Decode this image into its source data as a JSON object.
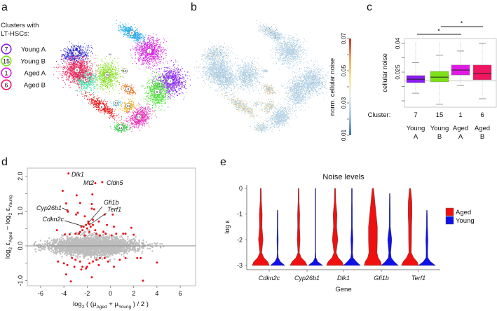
{
  "panel_labels": {
    "a": "a",
    "b": "b",
    "c": "c",
    "d": "d",
    "e": "e"
  },
  "chart_data": [
    {
      "panel": "a",
      "type": "scatter",
      "legend_title_line1": "Clusters with",
      "legend_title_line2": "LT-HSCs:",
      "legend": [
        {
          "cluster": "7",
          "label": "Young A",
          "color": "#8a1cf0"
        },
        {
          "cluster": "15",
          "label": "Young B",
          "color": "#7ee01a"
        },
        {
          "cluster": "1",
          "label": "Aged A",
          "color": "#e01ae6"
        },
        {
          "cluster": "6",
          "label": "Aged B",
          "color": "#f01560"
        }
      ],
      "clusters": [
        {
          "id": "1",
          "color": "#d51fe0"
        },
        {
          "id": "2",
          "color": "#1ea8e8"
        },
        {
          "id": "3",
          "color": "#2ee8a8"
        },
        {
          "id": "4",
          "color": "#2020d8"
        },
        {
          "id": "5",
          "color": "#e81818"
        },
        {
          "id": "6",
          "color": "#f0205a"
        },
        {
          "id": "7",
          "color": "#8a28f0"
        },
        {
          "id": "8",
          "color": "#f07010"
        },
        {
          "id": "9",
          "color": "#48e030"
        },
        {
          "id": "10",
          "color": "#e828b8"
        },
        {
          "id": "11",
          "color": "#f0b020"
        },
        {
          "id": "12",
          "color": "#20d0f0"
        },
        {
          "id": "13",
          "color": "#3060d0"
        },
        {
          "id": "14",
          "color": "#30d040"
        },
        {
          "id": "15",
          "color": "#88e020"
        }
      ],
      "stray_label": "M"
    },
    {
      "panel": "b",
      "type": "scatter",
      "colorbar_label": "norm. cellular noise",
      "colorbar_ticks": [
        "0.01",
        "0.03",
        "0.05",
        "0.07"
      ],
      "colorbar_range": [
        0.01,
        0.07
      ],
      "colormap": [
        "#3a6fb0",
        "#a9cbe3",
        "#eef2f0",
        "#f5e79a",
        "#f2a25a",
        "#c8302a"
      ]
    },
    {
      "panel": "c",
      "type": "box",
      "ylabel": "cellular noise",
      "yticks": [
        "0.04",
        "0.025"
      ],
      "ylim": [
        0.005,
        0.043
      ],
      "reference_line": 0.0205,
      "row_label": "Cluster:",
      "groups": [
        {
          "cluster": "7",
          "name1": "Young",
          "name2": "A",
          "color": "#8a1cf0",
          "q1": 0.0195,
          "median": 0.0213,
          "q3": 0.0232,
          "whisker_low": 0.014,
          "whisker_high": 0.03
        },
        {
          "cluster": "15",
          "name1": "Young",
          "name2": "B",
          "color": "#7ee01a",
          "q1": 0.0199,
          "median": 0.0224,
          "q3": 0.0254,
          "whisker_low": 0.0082,
          "whisker_high": 0.0338
        },
        {
          "cluster": "1",
          "name1": "Aged",
          "name2": "A",
          "color": "#e01ae6",
          "q1": 0.0235,
          "median": 0.0261,
          "q3": 0.0287,
          "whisker_low": 0.018,
          "whisker_high": 0.036
        },
        {
          "cluster": "6",
          "name1": "Aged",
          "name2": "B",
          "color": "#f01560",
          "q1": 0.021,
          "median": 0.0243,
          "q3": 0.0287,
          "whisker_low": 0.0111,
          "whisker_high": 0.04
        }
      ],
      "significance": [
        {
          "from": "7",
          "to": "1",
          "label": "*"
        },
        {
          "from": "15",
          "to": "6",
          "label": "*"
        }
      ]
    },
    {
      "panel": "d",
      "type": "scatter",
      "xlabel_parts": [
        "log",
        "2",
        " ( (μ",
        "Aged",
        " + μ",
        "Young",
        " ) / 2 )"
      ],
      "ylabel_parts": [
        "log",
        "2",
        " ε",
        "Aged",
        " − log",
        "2",
        " ε",
        "Young"
      ],
      "xlim": [
        -7.2,
        7.3
      ],
      "ylim": [
        -1.15,
        2.25
      ],
      "xticks": [
        "-6",
        "-4",
        "-2",
        "0",
        "2",
        "4",
        "6"
      ],
      "yticks": [
        "-1.0",
        "0.0",
        "1.0",
        "2.0"
      ],
      "background_color": "#bdbdbd",
      "significant_color": "#e8141c",
      "significant_points": [
        [
          -4.1,
          1.58
        ],
        [
          -2.9,
          1.45
        ],
        [
          -1.55,
          1.48
        ],
        [
          -3.8,
          1.22
        ],
        [
          -2.6,
          1.23
        ],
        [
          -1.6,
          1.2
        ],
        [
          -3.65,
          0.98
        ],
        [
          -1.6,
          1.07
        ],
        [
          -1.4,
          1.05
        ],
        [
          -2.95,
          0.9
        ],
        [
          -2.8,
          0.95
        ],
        [
          -2.2,
          0.85
        ],
        [
          -1.9,
          0.7
        ],
        [
          -1.5,
          0.75
        ],
        [
          -0.5,
          0.9
        ],
        [
          0.2,
          0.9
        ],
        [
          -1.0,
          0.7
        ],
        [
          -0.3,
          0.6
        ],
        [
          0.3,
          0.55
        ],
        [
          1.8,
          0.52
        ],
        [
          -4.6,
          0.45
        ],
        [
          -3.9,
          0.33
        ],
        [
          -3.5,
          0.33
        ],
        [
          -3.0,
          0.35
        ],
        [
          -2.6,
          0.4
        ],
        [
          -2.4,
          0.45
        ],
        [
          -2.2,
          0.3
        ],
        [
          -2.0,
          0.5
        ],
        [
          -1.7,
          0.55
        ],
        [
          -1.3,
          0.45
        ],
        [
          -1.2,
          0.35
        ],
        [
          -0.9,
          0.3
        ],
        [
          -0.6,
          0.4
        ],
        [
          -0.4,
          0.35
        ],
        [
          0.1,
          0.3
        ],
        [
          0.5,
          0.35
        ],
        [
          1.3,
          0.35
        ],
        [
          1.1,
          0.35
        ],
        [
          2.0,
          0.32
        ],
        [
          -2.7,
          0.35
        ],
        [
          -1.5,
          0.6
        ],
        [
          -2.1,
          0.6
        ],
        [
          -1.8,
          0.4
        ],
        [
          -2.5,
          0.55
        ],
        [
          -4.5,
          -0.45
        ],
        [
          -4.0,
          -0.5
        ],
        [
          -3.7,
          -0.55
        ],
        [
          -3.3,
          -0.35
        ],
        [
          -3.0,
          -0.4
        ],
        [
          -2.6,
          -0.45
        ],
        [
          -2.4,
          -0.6
        ],
        [
          -2.1,
          -0.65
        ],
        [
          -1.8,
          -0.5
        ],
        [
          -1.5,
          -0.45
        ],
        [
          -1.2,
          -0.4
        ],
        [
          -0.9,
          -0.35
        ],
        [
          -0.5,
          -0.35
        ],
        [
          -0.2,
          -0.45
        ],
        [
          0.3,
          -0.6
        ],
        [
          0.8,
          -0.4
        ],
        [
          1.3,
          -0.35
        ],
        [
          2.3,
          -0.35
        ],
        [
          2.6,
          -0.35
        ],
        [
          -3.8,
          -0.82
        ],
        [
          -2.5,
          -0.68
        ],
        [
          -1.6,
          -0.9
        ],
        [
          -3.4,
          -1.02
        ],
        [
          2.8,
          -1.0
        ],
        [
          4.0,
          -0.48
        ],
        [
          -3.1,
          -0.6
        ],
        [
          -2.0,
          -0.6
        ],
        [
          -1.0,
          -0.55
        ]
      ],
      "labeled_genes": [
        {
          "gene": "Dlk1",
          "x": -3.6,
          "y": 2.08
        },
        {
          "gene": "Mt2",
          "x": -1.3,
          "y": 1.8
        },
        {
          "gene": "Cldn5",
          "x": -0.7,
          "y": 1.83
        },
        {
          "gene": "Gfi1b",
          "x": -1.9,
          "y": 0.65
        },
        {
          "gene": "Terf1",
          "x": -1.8,
          "y": 0.62
        },
        {
          "gene": "Cyp26b1",
          "x": -3.7,
          "y": 1.02
        },
        {
          "gene": "Cdkn2c",
          "x": -2.3,
          "y": 0.55
        }
      ]
    },
    {
      "panel": "e",
      "type": "violin",
      "title": "Noise levels",
      "xlabel": "Gene",
      "ylabel": "log ε",
      "ylim": [
        -3,
        0
      ],
      "yticks": [
        "0",
        "-1",
        "-2",
        "-3"
      ],
      "legend": [
        {
          "name": "Aged",
          "color": "#f01010"
        },
        {
          "name": "Young",
          "color": "#1010e8"
        }
      ],
      "density_levels": [
        0,
        -0.5,
        -1,
        -1.5,
        -2,
        -2.5,
        -2.7,
        -2.85,
        -3
      ],
      "genes": [
        {
          "gene": "Cdkn2c",
          "aged": {
            "max": 0,
            "density": [
              0.03,
              0.05,
              0.14,
              0.12,
              0.24,
              0.08,
              0.35,
              0.8,
              1
            ]
          },
          "young": {
            "max": -0.85,
            "density": [
              0,
              0,
              0.02,
              0.02,
              0.05,
              0.02,
              0.06,
              0.3,
              0.85
            ]
          }
        },
        {
          "gene": "Cyp26b1",
          "aged": {
            "max": 0,
            "density": [
              0.02,
              0.03,
              0.1,
              0.08,
              0.14,
              0.05,
              0.3,
              0.75,
              1
            ]
          },
          "young": {
            "max": 0,
            "density": [
              0.01,
              0.01,
              0.01,
              0.01,
              0.01,
              0.01,
              0.03,
              0.25,
              0.85
            ]
          }
        },
        {
          "gene": "Dlk1",
          "aged": {
            "max": 0,
            "density": [
              0.03,
              0.06,
              0.2,
              0.16,
              0.3,
              0.1,
              0.35,
              0.8,
              1
            ]
          },
          "young": {
            "max": 0,
            "density": [
              0.02,
              0.02,
              0.03,
              0.03,
              0.1,
              0.04,
              0.12,
              0.5,
              1
            ]
          }
        },
        {
          "gene": "Gfi1b",
          "aged": {
            "max": 0,
            "density": [
              0.05,
              0.2,
              0.35,
              0.5,
              0.5,
              0.45,
              0.6,
              0.9,
              1
            ]
          },
          "young": {
            "max": -0.2,
            "density": [
              0.02,
              0.02,
              0.03,
              0.04,
              0.22,
              0.08,
              0.15,
              0.5,
              1
            ]
          }
        },
        {
          "gene": "Terf1",
          "aged": {
            "max": 0,
            "density": [
              0.04,
              0.18,
              0.2,
              0.15,
              0.14,
              0.12,
              0.4,
              0.8,
              1
            ]
          },
          "young": {
            "max": -0.85,
            "density": [
              0,
              0,
              0.02,
              0.04,
              0.1,
              0.06,
              0.08,
              0.4,
              1
            ]
          }
        }
      ]
    }
  ]
}
